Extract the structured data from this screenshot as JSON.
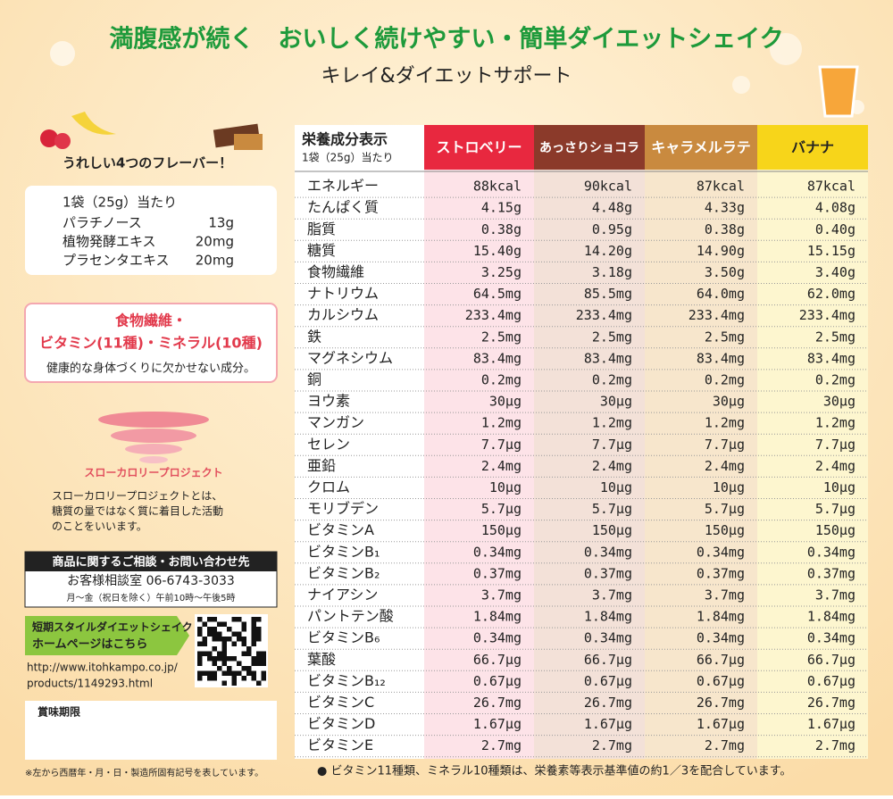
{
  "header": {
    "title": "満腹感が続く　おいしく続けやすい・簡単ダイエットシェイク",
    "subtitle": "キレイ&ダイエットサポート"
  },
  "left": {
    "flavors_caption": "うれしい4つのフレーバー！",
    "ingredients": {
      "heading": "1袋（25g）当たり",
      "items": [
        [
          "パラチノース",
          "13g"
        ],
        [
          "植物発酵エキス",
          "20mg"
        ],
        [
          "プラセンタエキス",
          "20mg"
        ]
      ]
    },
    "nutrients": {
      "lines": [
        "食物繊維・",
        "ビタミン(11種)・ミネラル(10種)"
      ],
      "note": "健康的な身体づくりに欠かせない成分。"
    },
    "slow_calorie": {
      "logo": "スローカロリープロジェクト",
      "lines": [
        "スローカロリープロジェクトとは、",
        "糖質の量ではなく質に着目した活動",
        "のことをいいます。"
      ]
    },
    "contact": {
      "heading": "商品に関するご相談・お問い合わせ先",
      "phone": "お客様相談室 06-6743-3033",
      "hours": "月～金（祝日を除く）午前10時～午後5時"
    },
    "homepage": {
      "label": [
        "短期スタイルダイエットシェイク",
        "ホームページはこちら"
      ],
      "url": [
        "http://www.itohkampo.co.jp/",
        "products/1149293.html"
      ]
    },
    "expiry": "賞味期限",
    "footnote": "※左から西暦年・月・日・製造所固有記号を表しています。"
  },
  "table": {
    "heading": "栄養成分表示",
    "subheading": "1袋（25g）当たり",
    "columns": [
      "ストロベリー",
      "あっさりショコラ",
      "キャラメルラテ",
      "バナナ"
    ],
    "rows": [
      [
        "エネルギー",
        "88kcal",
        "90kcal",
        "87kcal",
        "87kcal"
      ],
      [
        "たんぱく質",
        "4.15g",
        "4.48g",
        "4.33g",
        "4.08g"
      ],
      [
        "脂質",
        "0.38g",
        "0.95g",
        "0.38g",
        "0.40g"
      ],
      [
        "糖質",
        "15.40g",
        "14.20g",
        "14.90g",
        "15.15g"
      ],
      [
        "食物繊維",
        "3.25g",
        "3.18g",
        "3.50g",
        "3.40g"
      ],
      [
        "ナトリウム",
        "64.5mg",
        "85.5mg",
        "64.0mg",
        "62.0mg"
      ],
      [
        "カルシウム",
        "233.4mg",
        "233.4mg",
        "233.4mg",
        "233.4mg"
      ],
      [
        "鉄",
        "2.5mg",
        "2.5mg",
        "2.5mg",
        "2.5mg"
      ],
      [
        "マグネシウム",
        "83.4mg",
        "83.4mg",
        "83.4mg",
        "83.4mg"
      ],
      [
        "銅",
        "0.2mg",
        "0.2mg",
        "0.2mg",
        "0.2mg"
      ],
      [
        "ヨウ素",
        "30μg",
        "30μg",
        "30μg",
        "30μg"
      ],
      [
        "マンガン",
        "1.2mg",
        "1.2mg",
        "1.2mg",
        "1.2mg"
      ],
      [
        "セレン",
        "7.7μg",
        "7.7μg",
        "7.7μg",
        "7.7μg"
      ],
      [
        "亜鉛",
        "2.4mg",
        "2.4mg",
        "2.4mg",
        "2.4mg"
      ],
      [
        "クロム",
        "10μg",
        "10μg",
        "10μg",
        "10μg"
      ],
      [
        "モリブデン",
        "5.7μg",
        "5.7μg",
        "5.7μg",
        "5.7μg"
      ],
      [
        "ビタミンA",
        "150μg",
        "150μg",
        "150μg",
        "150μg"
      ],
      [
        "ビタミンB₁",
        "0.34mg",
        "0.34mg",
        "0.34mg",
        "0.34mg"
      ],
      [
        "ビタミンB₂",
        "0.37mg",
        "0.37mg",
        "0.37mg",
        "0.37mg"
      ],
      [
        "ナイアシン",
        "3.7mg",
        "3.7mg",
        "3.7mg",
        "3.7mg"
      ],
      [
        "パントテン酸",
        "1.84mg",
        "1.84mg",
        "1.84mg",
        "1.84mg"
      ],
      [
        "ビタミンB₆",
        "0.34mg",
        "0.34mg",
        "0.34mg",
        "0.34mg"
      ],
      [
        "葉酸",
        "66.7μg",
        "66.7μg",
        "66.7μg",
        "66.7μg"
      ],
      [
        "ビタミンB₁₂",
        "0.67μg",
        "0.67μg",
        "0.67μg",
        "0.67μg"
      ],
      [
        "ビタミンC",
        "26.7mg",
        "26.7mg",
        "26.7mg",
        "26.7mg"
      ],
      [
        "ビタミンD",
        "1.67μg",
        "1.67μg",
        "1.67μg",
        "1.67μg"
      ],
      [
        "ビタミンE",
        "2.7mg",
        "2.7mg",
        "2.7mg",
        "2.7mg"
      ]
    ],
    "footnote": "● ビタミン11種類、ミネラル10種類は、栄養素等表示基準値の約1／3を配合しています。"
  }
}
